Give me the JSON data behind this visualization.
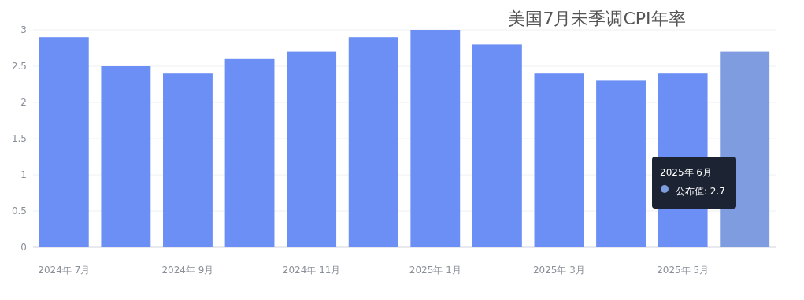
{
  "chart_data": {
    "type": "bar",
    "title": "美国7月未季调CPI年率",
    "categories": [
      "2024年 7月",
      null,
      "2024年 9月",
      null,
      "2024年 11月",
      null,
      "2025年 1月",
      null,
      "2025年 3月",
      null,
      "2025年 5月",
      null
    ],
    "values": [
      2.9,
      2.5,
      2.4,
      2.6,
      2.7,
      2.9,
      3.0,
      2.8,
      2.4,
      2.3,
      2.4,
      2.7
    ],
    "colors": [
      "#6b8ff5",
      "#6b8ff5",
      "#6b8ff5",
      "#6b8ff5",
      "#6b8ff5",
      "#6b8ff5",
      "#6b8ff5",
      "#6b8ff5",
      "#6b8ff5",
      "#6b8ff5",
      "#6b8ff5",
      "#7f9ce0"
    ],
    "ylim": [
      0,
      3
    ],
    "yticks": [
      0,
      0.5,
      1,
      1.5,
      2,
      2.5,
      3
    ],
    "grid": "y",
    "annotations": [
      "2025年 6月",
      "公布值: 2.7"
    ]
  }
}
